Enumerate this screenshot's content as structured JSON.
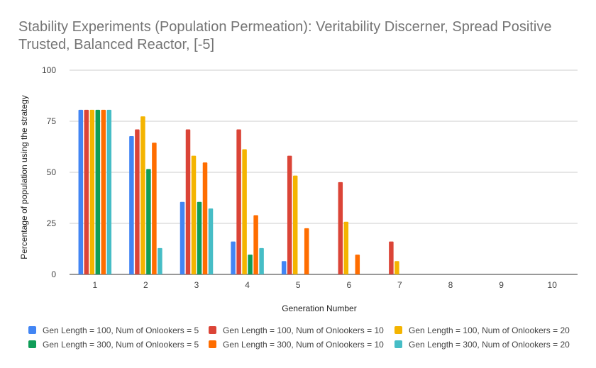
{
  "chart_data": {
    "type": "bar",
    "title": "Stability Experiments (Population Permeation): Veritability Discerner, Spread Positive Trusted, Balanced Reactor, [-5]",
    "xlabel": "Generation Number",
    "ylabel": "Percentage of population using the strategy",
    "ylim": [
      0,
      100
    ],
    "yticks": [
      0,
      25,
      50,
      75,
      100
    ],
    "grid": true,
    "legend_position": "bottom",
    "categories": [
      "1",
      "2",
      "3",
      "4",
      "5",
      "6",
      "7",
      "8",
      "9",
      "10"
    ],
    "series": [
      {
        "name": "Gen Length = 100, Num of Onlookers = 5",
        "color": "#4285f4",
        "values": [
          80.6,
          67.7,
          35.5,
          16.1,
          6.5,
          0,
          0,
          0,
          0,
          0
        ]
      },
      {
        "name": "Gen Length = 100, Num of Onlookers = 10",
        "color": "#db4437",
        "values": [
          80.6,
          71.0,
          71.0,
          71.0,
          58.1,
          45.2,
          16.1,
          0,
          0,
          0
        ]
      },
      {
        "name": "Gen Length = 100, Num of Onlookers = 20",
        "color": "#f4b400",
        "values": [
          80.6,
          77.4,
          58.1,
          61.3,
          48.4,
          25.8,
          6.5,
          0,
          0,
          0
        ]
      },
      {
        "name": "Gen Length = 300, Num of Onlookers = 5",
        "color": "#0f9d58",
        "values": [
          80.6,
          51.6,
          35.5,
          9.7,
          0,
          0,
          0,
          0,
          0,
          0
        ]
      },
      {
        "name": "Gen Length = 300, Num of Onlookers = 10",
        "color": "#ff6d00",
        "values": [
          80.6,
          64.5,
          54.8,
          29.0,
          22.6,
          9.7,
          0,
          0,
          0,
          0
        ]
      },
      {
        "name": "Gen Length = 300, Num of Onlookers = 20",
        "color": "#46bdc6",
        "values": [
          80.6,
          12.9,
          32.3,
          12.9,
          0,
          0,
          0,
          0,
          0,
          0
        ]
      }
    ]
  }
}
